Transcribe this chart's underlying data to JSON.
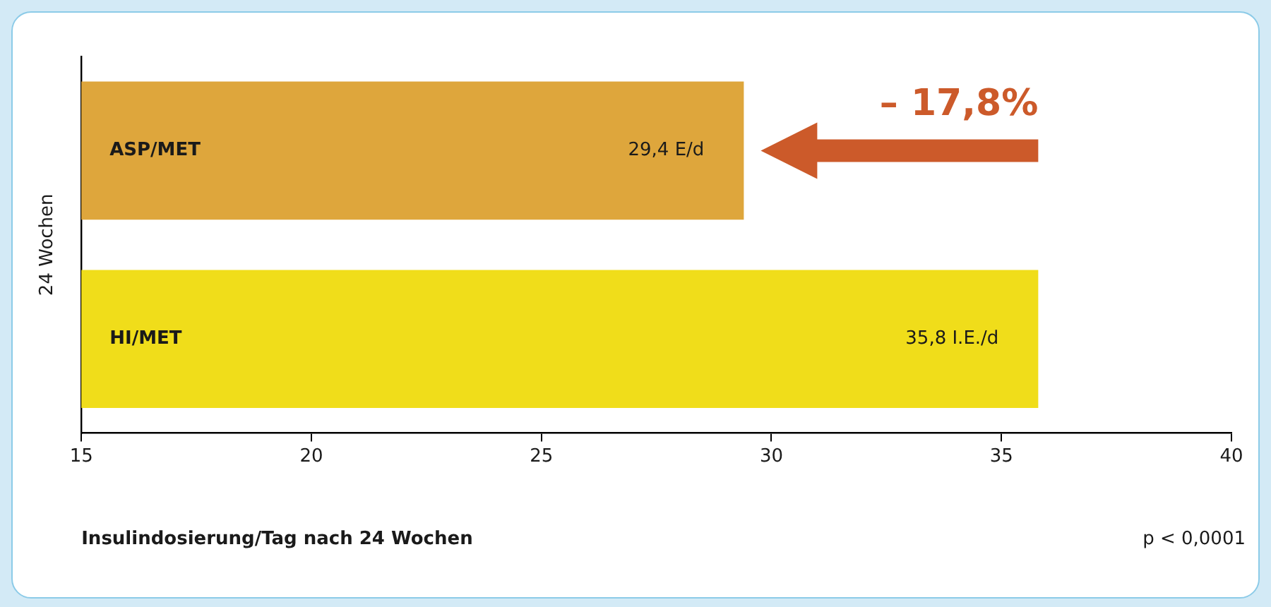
{
  "chart_data": {
    "type": "bar",
    "orientation": "horizontal",
    "categories": [
      "ASP/MET",
      "HI/MET"
    ],
    "values": [
      29.4,
      35.8
    ],
    "colors": [
      "#dea63c",
      "#f0dd1a"
    ],
    "value_labels": [
      "29,4 E/d",
      "35,8 I.E./d"
    ],
    "xlim": [
      15,
      40
    ],
    "xticks": [
      15,
      20,
      25,
      30,
      35,
      40
    ],
    "xlabel": "Insulindosierung/Tag nach 24 Wochen",
    "ylabel": "24 Wochen",
    "annotations": [
      "– 17,8%",
      "p < 0,0001"
    ],
    "grid": false,
    "legend": false
  }
}
